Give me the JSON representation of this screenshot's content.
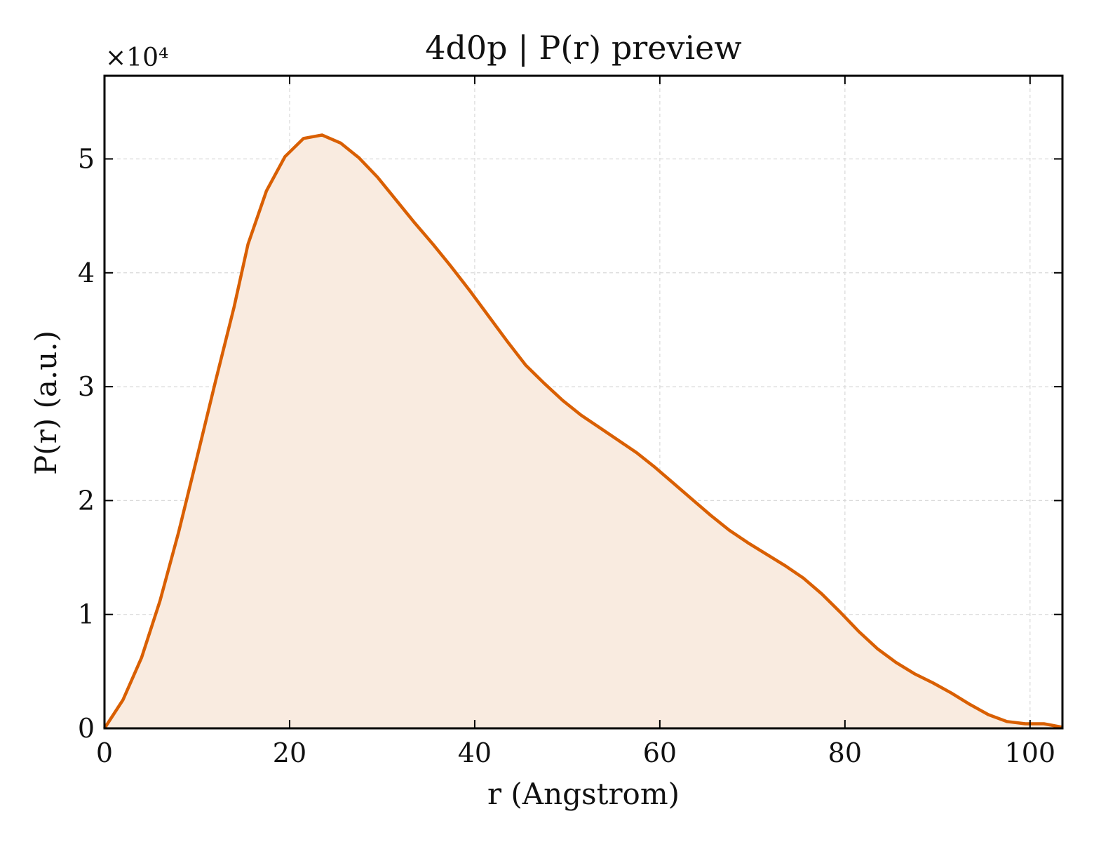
{
  "chart_data": {
    "type": "area",
    "title": "4d0p | P(r) preview",
    "xlabel": "r (Angstrom)",
    "ylabel": "P(r) (a.u.)",
    "y_multiplier": "×10⁴",
    "xlim": [
      0,
      103.5
    ],
    "ylim": [
      0,
      5.73
    ],
    "y_scale_factor": 10000,
    "xticks": [
      0,
      20,
      40,
      60,
      80,
      100
    ],
    "yticks": [
      0,
      1,
      2,
      3,
      4,
      5
    ],
    "grid": true,
    "legend": "none",
    "colors": {
      "line": "#D95F02",
      "fill": "#F9EBE0",
      "grid": "#d9d9d9",
      "axis": "#000000"
    },
    "series": [
      {
        "x": [
          0,
          2,
          4,
          6,
          8,
          10,
          12,
          14,
          15.5,
          17.5,
          19.5,
          21.5,
          23.5,
          25.5,
          27.5,
          29.5,
          31.5,
          33.5,
          35.5,
          37.5,
          39.5,
          41.5,
          43.5,
          45.5,
          47.5,
          49.5,
          51.5,
          53.5,
          55.5,
          57.5,
          59.5,
          61.5,
          63.5,
          65.5,
          67.5,
          69.5,
          71.5,
          73.5,
          75.5,
          77.5,
          79.5,
          81.5,
          83.5,
          85.5,
          87.5,
          89.5,
          91.5,
          93.5,
          95.5,
          97.5,
          99.5,
          101.5,
          103.5
        ],
        "values": [
          0.0,
          0.25,
          0.62,
          1.12,
          1.72,
          2.38,
          3.05,
          3.7,
          4.25,
          4.72,
          5.02,
          5.18,
          5.21,
          5.14,
          5.01,
          4.84,
          4.64,
          4.44,
          4.25,
          4.05,
          3.84,
          3.62,
          3.4,
          3.19,
          3.03,
          2.88,
          2.75,
          2.64,
          2.53,
          2.42,
          2.29,
          2.15,
          2.01,
          1.87,
          1.74,
          1.63,
          1.53,
          1.43,
          1.32,
          1.18,
          1.02,
          0.85,
          0.7,
          0.58,
          0.48,
          0.4,
          0.31,
          0.21,
          0.12,
          0.06,
          0.04,
          0.04,
          0.01
        ]
      }
    ]
  }
}
